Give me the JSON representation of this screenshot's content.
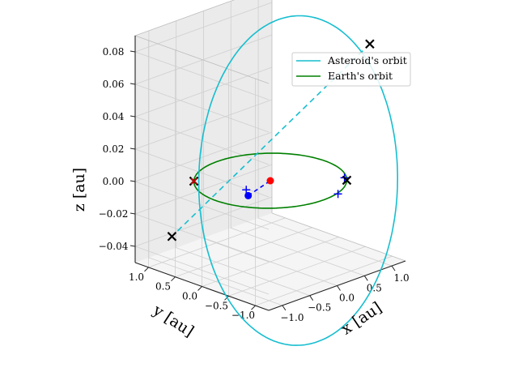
{
  "chart_data": {
    "type": "line",
    "projection": "3d",
    "axes": {
      "x": {
        "label": "x [au]",
        "ticks": [
          -1.0,
          -0.5,
          0.0,
          0.5,
          1.0
        ],
        "tick_labels": [
          "−1.0",
          "−0.5",
          "0.0",
          "0.5",
          "1.0"
        ],
        "range": [
          -1.25,
          1.25
        ]
      },
      "y": {
        "label": "y [au]",
        "ticks": [
          -1.0,
          -0.5,
          0.0,
          0.5,
          1.0
        ],
        "tick_labels": [
          "−1.0",
          "−0.5",
          "0.0",
          "0.5",
          "1.0"
        ],
        "range": [
          -1.25,
          1.25
        ]
      },
      "z": {
        "label": "z [au]",
        "ticks": [
          -0.04,
          -0.02,
          0.0,
          0.02,
          0.04,
          0.06,
          0.08
        ],
        "tick_labels": [
          "−0.04",
          "−0.02",
          "0.00",
          "0.02",
          "0.04",
          "0.06",
          "0.08"
        ],
        "range": [
          -0.05,
          0.09
        ]
      }
    },
    "grid": true,
    "legend": {
      "placement": "top-right",
      "entries": [
        "Asteroid's orbit",
        "Earth's orbit"
      ]
    },
    "series": [
      {
        "name": "Asteroid's orbit",
        "color": "#17becf",
        "kind": "ellipse",
        "semi_major_au": 1.3,
        "eccentricity": 0.28,
        "inclination_deg": 3.7,
        "node_longitude_deg": 135
      },
      {
        "name": "Earth's orbit",
        "color": "#008000",
        "kind": "circle",
        "radius_au": 1.0,
        "z": 0.0
      }
    ],
    "line_of_nodes": {
      "color": "#17becf",
      "style": "dashed"
    },
    "markers": {
      "black_x": [
        {
          "x": 0.92,
          "y": -0.92,
          "z": 0.084
        },
        {
          "x": -0.91,
          "y": 0.91,
          "z": -0.034
        },
        {
          "x": 0.7071,
          "y": -0.7071,
          "z": 0.0
        },
        {
          "x": -0.7071,
          "y": 0.7071,
          "z": 0.0
        }
      ],
      "red_x": [
        {
          "x": -0.7071,
          "y": 0.7071,
          "z": 0.0
        }
      ],
      "blue_plus": [
        {
          "x": -0.45,
          "y": -0.01,
          "z": 0.0
        },
        {
          "x": 0.75,
          "y": -0.62,
          "z": 0.0
        },
        {
          "x": 0.28,
          "y": -0.98,
          "z": 0.0
        }
      ],
      "blue_dot": {
        "x": -0.58,
        "y": -0.18,
        "z": 0.0
      },
      "red_dot": {
        "x": 0.0,
        "y": 0.0,
        "z": 0.0
      },
      "blue_dashed_segment": {
        "from": "blue_dot",
        "to": "red_dot",
        "color": "#0000ff"
      }
    }
  }
}
